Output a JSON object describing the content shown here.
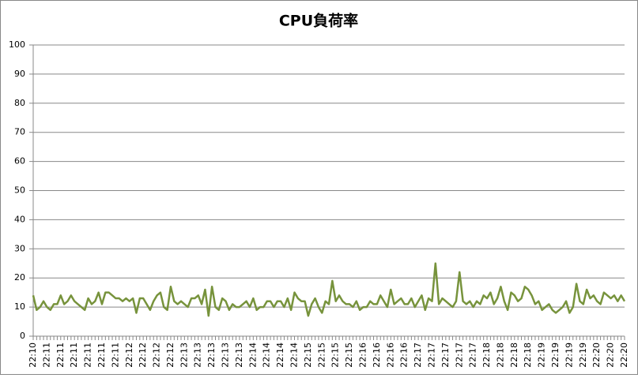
{
  "chart_data": {
    "type": "line",
    "title": "CPU負荷率",
    "categories": [
      "22:10",
      null,
      null,
      null,
      "22:11",
      null,
      null,
      null,
      "22:11",
      null,
      null,
      null,
      "22:11",
      null,
      null,
      null,
      "22:11",
      null,
      null,
      null,
      "22:11",
      null,
      null,
      null,
      "22:11",
      null,
      null,
      null,
      "22:12",
      null,
      null,
      null,
      "22:12",
      null,
      null,
      null,
      "22:12",
      null,
      null,
      null,
      "22:12",
      null,
      null,
      null,
      "22:13",
      null,
      null,
      null,
      "22:13",
      null,
      null,
      null,
      "22:13",
      null,
      null,
      null,
      "22:13",
      null,
      null,
      null,
      "22:13",
      null,
      null,
      null,
      "22:14",
      null,
      null,
      null,
      "22:14",
      null,
      null,
      null,
      "22:14",
      null,
      null,
      null,
      "22:14",
      null,
      null,
      null,
      "22:15",
      null,
      null,
      null,
      "22:15",
      null,
      null,
      null,
      "22:15",
      null,
      null,
      null,
      "22:15",
      null,
      null,
      null,
      "22:16",
      null,
      null,
      null,
      "22:16",
      null,
      null,
      null,
      "22:16",
      null,
      null,
      null,
      "22:16",
      null,
      null,
      null,
      "22:17",
      null,
      null,
      null,
      "22:17",
      null,
      null,
      null,
      "22:17",
      null,
      null,
      null,
      "22:17",
      null,
      null,
      null,
      "22:17",
      null,
      null,
      null,
      "22:18",
      null,
      null,
      null,
      "22:18",
      null,
      null,
      null,
      "22:18",
      null,
      null,
      null,
      "22:18",
      null,
      null,
      null,
      "22:19",
      null,
      null,
      null,
      "22:19",
      null,
      null,
      null,
      "22:19",
      null,
      null,
      null,
      "22:19",
      null,
      null,
      null,
      "22:20",
      null,
      null,
      null,
      "22:20",
      null,
      null,
      null,
      "22:20"
    ],
    "series": [
      {
        "name": "CPU負荷率",
        "color": "#77933c",
        "values": [
          14,
          9,
          10,
          12,
          10,
          9,
          11,
          11,
          14,
          11,
          12,
          14,
          12,
          11,
          10,
          9,
          13,
          11,
          12,
          15,
          11,
          15,
          15,
          14,
          13,
          13,
          12,
          13,
          12,
          13,
          8,
          13,
          13,
          11,
          9,
          12,
          14,
          15,
          10,
          9,
          17,
          12,
          11,
          12,
          11,
          10,
          13,
          13,
          14,
          11,
          16,
          7,
          17,
          10,
          9,
          13,
          12,
          9,
          11,
          10,
          10,
          11,
          12,
          10,
          13,
          9,
          10,
          10,
          12,
          12,
          10,
          12,
          12,
          10,
          13,
          9,
          15,
          13,
          12,
          12,
          7,
          11,
          13,
          10,
          8,
          12,
          11,
          19,
          12,
          14,
          12,
          11,
          11,
          10,
          12,
          9,
          10,
          10,
          12,
          11,
          11,
          14,
          12,
          10,
          16,
          11,
          12,
          13,
          11,
          11,
          13,
          10,
          12,
          14,
          9,
          13,
          12,
          25,
          11,
          13,
          12,
          11,
          10,
          12,
          22,
          12,
          11,
          12,
          10,
          12,
          11,
          14,
          13,
          15,
          11,
          13,
          17,
          12,
          9,
          15,
          14,
          12,
          13,
          17,
          16,
          14,
          11,
          12,
          9,
          10,
          11,
          9,
          8,
          9,
          10,
          12,
          8,
          10,
          18,
          12,
          11,
          16,
          13,
          14,
          12,
          11,
          15,
          14,
          13,
          14,
          12,
          14,
          12
        ]
      }
    ],
    "ylim": [
      0,
      100
    ],
    "yticks": [
      0,
      10,
      20,
      30,
      40,
      50,
      60,
      70,
      80,
      90,
      100
    ],
    "grid": true
  }
}
